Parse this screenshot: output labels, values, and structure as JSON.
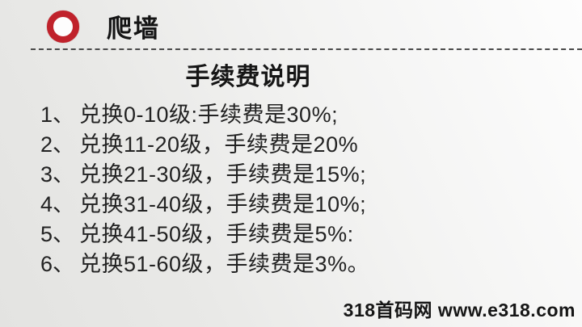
{
  "slide": {
    "title": "爬墙",
    "heading": "手续费说明",
    "icon": "red-ring-icon",
    "items": [
      {
        "num": "1、",
        "text": "兑换0-10级:手续费是30%;"
      },
      {
        "num": "2、",
        "text": "兑换11-20级，手续费是20%"
      },
      {
        "num": "3、",
        "text": "兑换21-30级，手续费是15%;"
      },
      {
        "num": "4、",
        "text": "兑换31-40级，手续费是10%;"
      },
      {
        "num": "5、",
        "text": "兑换41-50级，手续费是5%:"
      },
      {
        "num": "6、",
        "text": "兑换51-60级，手续费是3%。"
      }
    ],
    "watermark": "318首码网 www.e318.com",
    "colors": {
      "accent_red": "#c0222b",
      "text": "#1c1c1c",
      "background_light": "#fdfdfd",
      "background_dark": "#e3e3e1"
    }
  }
}
